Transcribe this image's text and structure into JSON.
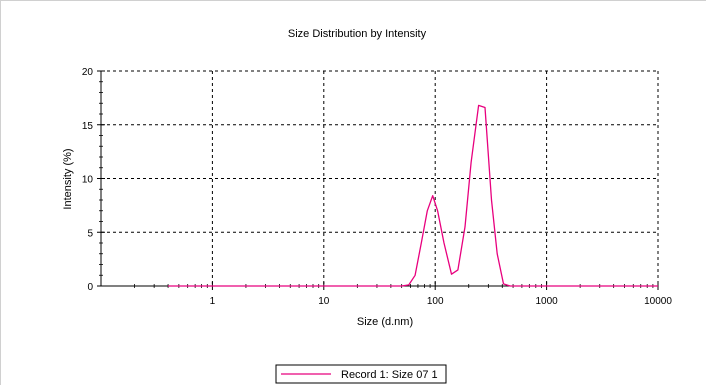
{
  "chart_data": {
    "type": "line",
    "title": "Size Distribution by Intensity",
    "xlabel": "Size (d.nm)",
    "ylabel": "Intensity (%)",
    "xscale": "log",
    "xlim": [
      0.1,
      10000
    ],
    "ylim": [
      0,
      20
    ],
    "xticks": [
      1,
      10,
      100,
      1000,
      10000
    ],
    "xtick_labels": [
      "1",
      "10",
      "100",
      "1000",
      "10000"
    ],
    "yticks": [
      0,
      5,
      10,
      15,
      20
    ],
    "ytick_labels": [
      "0",
      "5",
      "10",
      "15",
      "20"
    ],
    "grid": true,
    "legend_position": "bottom-center",
    "series": [
      {
        "name": "Record 1: Size 07 1",
        "color": "#e8007e",
        "x": [
          0.4,
          1,
          10,
          40,
          50,
          58,
          66,
          75,
          85,
          95,
          105,
          120,
          140,
          160,
          185,
          210,
          245,
          280,
          320,
          360,
          410,
          470,
          550,
          1000,
          5000,
          10000
        ],
        "y": [
          0,
          0,
          0,
          0,
          0,
          0.1,
          1.0,
          4.0,
          7.0,
          8.4,
          7.0,
          4.0,
          1.1,
          1.5,
          5.5,
          11.5,
          16.8,
          16.6,
          8.0,
          3.0,
          0.2,
          0,
          0,
          0,
          0,
          0
        ]
      }
    ]
  }
}
